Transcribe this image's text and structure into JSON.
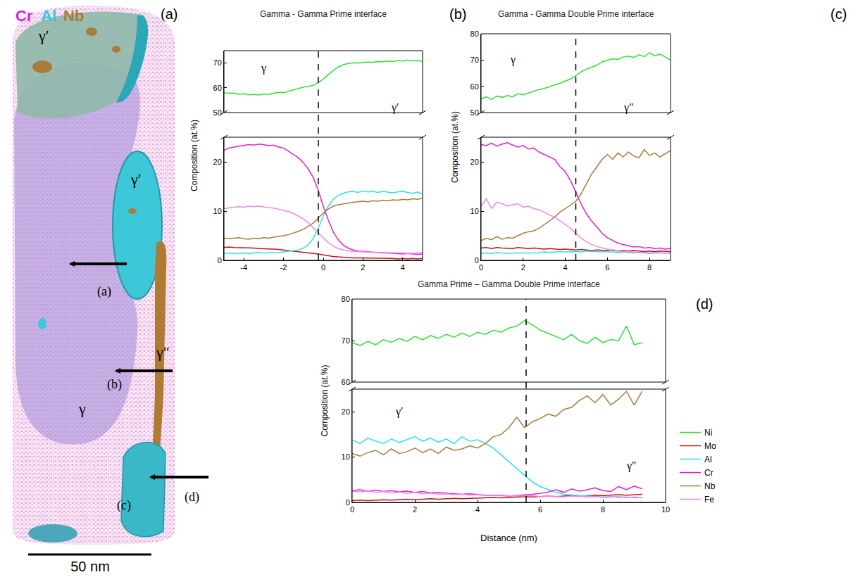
{
  "reconstruction": {
    "element_labels": [
      {
        "text": "Cr",
        "color": "#e020d8"
      },
      {
        "text": "Al",
        "color": "#2ec8e0"
      },
      {
        "text": "Nb",
        "color": "#a87c3a"
      }
    ],
    "phase_labels": [
      "γ′",
      "γ′",
      "γ″",
      "γ"
    ],
    "region_labels": [
      "(a)",
      "(b)",
      "(c)",
      "(d)"
    ],
    "scale_bar": "50 nm"
  },
  "panel_letters": [
    "(a)",
    "(b)",
    "(c)",
    "(d)"
  ],
  "chart_data": [
    {
      "type": "line",
      "title": "Gamma - Gamma Prime interface",
      "ylabel": "Composition (at.%)",
      "x": [
        -5,
        -4.75,
        -4.5,
        -4.25,
        -4,
        -3.75,
        -3.5,
        -3.25,
        -3,
        -2.75,
        -2.5,
        -2.25,
        -2,
        -1.75,
        -1.5,
        -1.25,
        -1,
        -0.75,
        -0.5,
        -0.25,
        0,
        0.25,
        0.5,
        0.75,
        1,
        1.25,
        1.5,
        1.75,
        2,
        2.25,
        2.5,
        2.75,
        3,
        3.25,
        3.5,
        3.75,
        4,
        4.25,
        4.5,
        4.75,
        5
      ],
      "xlim": [
        -5,
        5
      ],
      "xticks": [
        -4,
        -2,
        0,
        2,
        4
      ],
      "ylim": [
        0,
        25
      ],
      "yticks": [
        0,
        10,
        20
      ],
      "y2lim": [
        50,
        75
      ],
      "y2ticks": [
        50,
        60,
        70
      ],
      "interface": -0.25,
      "annotations": [
        {
          "text": "γ",
          "x": -3,
          "y": 68,
          "axis": "y2"
        },
        {
          "text": "γ′",
          "x": 3.6,
          "y": 52,
          "axis": "y2"
        }
      ],
      "series": [
        {
          "name": "Ni",
          "color": "#32e032",
          "axis": "y2",
          "values": [
            58.0,
            57.8,
            57.9,
            57.4,
            57.6,
            57.2,
            57.4,
            57.1,
            57.5,
            57.3,
            57.8,
            58.2,
            58.0,
            58.6,
            59.3,
            59.8,
            60.3,
            60.6,
            61.0,
            62.2,
            63.5,
            65.3,
            67.0,
            68.4,
            69.3,
            69.8,
            70.1,
            70.0,
            70.2,
            70.4,
            70.3,
            70.6,
            70.5,
            70.8,
            70.6,
            71.0,
            70.8,
            71.2,
            70.9,
            71.1,
            70.7
          ]
        },
        {
          "name": "Mo",
          "color": "#c0141e",
          "values": [
            2.6,
            2.7,
            2.6,
            2.6,
            2.5,
            2.6,
            2.5,
            2.4,
            2.4,
            2.3,
            2.3,
            2.2,
            2.1,
            2.0,
            1.9,
            1.8,
            1.7,
            1.6,
            1.5,
            1.3,
            1.1,
            0.9,
            0.8,
            0.7,
            0.6,
            0.6,
            0.5,
            0.5,
            0.5,
            0.4,
            0.4,
            0.4,
            0.4,
            0.4,
            0.4,
            0.3,
            0.4,
            0.3,
            0.4,
            0.3,
            0.4
          ]
        },
        {
          "name": "Al",
          "color": "#2ee0e8",
          "values": [
            1.4,
            1.5,
            1.4,
            1.5,
            1.5,
            1.4,
            1.5,
            1.6,
            1.5,
            1.5,
            1.6,
            1.6,
            1.7,
            1.8,
            1.9,
            2.1,
            2.5,
            3.2,
            4.5,
            6.5,
            9.0,
            11.0,
            12.4,
            13.2,
            13.6,
            13.9,
            14.0,
            13.8,
            14.1,
            13.9,
            14.0,
            13.8,
            14.0,
            13.9,
            13.7,
            13.9,
            14.0,
            13.8,
            13.6,
            13.9,
            13.5
          ]
        },
        {
          "name": "Cr",
          "color": "#e020d8",
          "values": [
            22.3,
            22.8,
            23.0,
            23.2,
            23.3,
            23.5,
            23.4,
            23.6,
            23.5,
            23.3,
            23.4,
            23.0,
            22.8,
            22.2,
            21.5,
            20.8,
            19.8,
            18.5,
            16.8,
            14.2,
            11.0,
            8.2,
            5.8,
            4.2,
            3.1,
            2.5,
            2.1,
            1.9,
            1.8,
            1.7,
            1.6,
            1.6,
            1.5,
            1.5,
            1.4,
            1.4,
            1.3,
            1.4,
            1.3,
            1.2,
            1.3
          ]
        },
        {
          "name": "Nb",
          "color": "#a87c3a",
          "values": [
            4.5,
            4.4,
            4.5,
            4.6,
            4.4,
            4.3,
            4.5,
            4.4,
            4.6,
            4.5,
            4.7,
            4.8,
            5.0,
            5.2,
            5.5,
            5.9,
            6.3,
            6.9,
            7.6,
            8.6,
            9.6,
            10.4,
            11.0,
            11.3,
            11.5,
            11.6,
            11.8,
            11.9,
            12.0,
            11.9,
            12.1,
            12.0,
            12.2,
            12.1,
            12.3,
            12.2,
            12.4,
            12.3,
            12.5,
            12.4,
            12.6
          ]
        },
        {
          "name": "Fe",
          "color": "#f08ae0",
          "values": [
            10.5,
            10.7,
            10.8,
            10.9,
            10.8,
            11.0,
            10.9,
            11.0,
            10.8,
            10.7,
            10.6,
            10.4,
            10.2,
            9.9,
            9.5,
            9.0,
            8.4,
            7.6,
            6.6,
            5.5,
            4.5,
            3.6,
            2.9,
            2.4,
            2.1,
            1.9,
            1.8,
            1.8,
            1.7,
            1.7,
            1.6,
            1.6,
            1.6,
            1.5,
            1.5,
            1.5,
            1.5,
            1.4,
            1.5,
            1.5,
            1.5
          ]
        }
      ]
    },
    {
      "type": "line",
      "title": "Gamma - Gamma Double Prime interface",
      "ylabel": "Composition (at.%)",
      "x": [
        0,
        0.25,
        0.5,
        0.75,
        1,
        1.25,
        1.5,
        1.75,
        2,
        2.25,
        2.5,
        2.75,
        3,
        3.25,
        3.5,
        3.75,
        4,
        4.25,
        4.5,
        4.75,
        5,
        5.25,
        5.5,
        5.75,
        6,
        6.25,
        6.5,
        6.75,
        7,
        7.25,
        7.5,
        7.75,
        8,
        8.25,
        8.5,
        8.75,
        9
      ],
      "xlim": [
        0,
        9
      ],
      "xticks": [
        0,
        2,
        4,
        6,
        8
      ],
      "ylim": [
        0,
        25
      ],
      "yticks": [
        0,
        10,
        20
      ],
      "y2lim": [
        50,
        80
      ],
      "y2ticks": [
        50,
        60,
        70,
        80
      ],
      "interface": 4.5,
      "annotations": [
        {
          "text": "γ",
          "x": 1.5,
          "y": 70,
          "axis": "y2"
        },
        {
          "text": "γ″",
          "x": 7,
          "y": 52,
          "axis": "y2"
        }
      ],
      "series": [
        {
          "name": "Ni",
          "color": "#32e032",
          "axis": "y2",
          "values": [
            55.2,
            56.0,
            55.0,
            56.3,
            55.8,
            56.5,
            56.0,
            57.2,
            56.8,
            57.5,
            58.0,
            58.8,
            59.2,
            60.0,
            60.6,
            61.2,
            62.0,
            62.8,
            64.0,
            65.5,
            66.5,
            67.2,
            68.0,
            69.3,
            69.8,
            70.5,
            70.2,
            71.2,
            71.5,
            71.0,
            72.0,
            71.3,
            72.8,
            71.6,
            72.3,
            71.2,
            70.0
          ]
        },
        {
          "name": "Mo",
          "color": "#c0141e",
          "values": [
            2.5,
            2.6,
            2.4,
            2.6,
            2.5,
            2.5,
            2.4,
            2.6,
            2.5,
            2.4,
            2.5,
            2.4,
            2.3,
            2.4,
            2.3,
            2.2,
            2.3,
            2.2,
            2.1,
            2.2,
            2.1,
            2.0,
            2.1,
            2.0,
            2.0,
            2.1,
            1.9,
            2.0,
            1.9,
            2.0,
            1.9,
            1.8,
            1.9,
            1.8,
            1.9,
            1.8,
            1.8
          ]
        },
        {
          "name": "Al",
          "color": "#2ee0e8",
          "values": [
            1.4,
            1.5,
            1.4,
            1.6,
            1.5,
            1.4,
            1.5,
            1.5,
            1.6,
            1.5,
            1.6,
            1.5,
            1.7,
            1.6,
            1.7,
            1.8,
            1.7,
            1.8,
            1.8,
            1.7,
            1.9,
            1.8,
            1.8,
            1.7,
            1.8,
            1.7,
            1.6,
            1.7,
            1.6,
            1.5,
            1.6,
            1.5,
            1.4,
            1.5,
            1.5,
            1.4,
            1.5
          ]
        },
        {
          "name": "Cr",
          "color": "#e020d8",
          "values": [
            23.5,
            23.3,
            23.8,
            23.2,
            23.6,
            23.9,
            23.4,
            23.0,
            23.3,
            22.6,
            22.8,
            22.0,
            21.5,
            21.0,
            20.5,
            19.0,
            18.0,
            16.2,
            13.8,
            11.5,
            9.5,
            8.0,
            6.8,
            5.5,
            4.6,
            4.0,
            3.5,
            3.2,
            3.0,
            2.7,
            2.8,
            2.5,
            2.6,
            2.4,
            2.5,
            2.3,
            2.4
          ]
        },
        {
          "name": "Nb",
          "color": "#a87c3a",
          "values": [
            4.0,
            4.5,
            4.2,
            4.8,
            4.3,
            4.6,
            4.5,
            5.0,
            5.5,
            5.8,
            6.0,
            6.5,
            7.2,
            8.0,
            8.8,
            9.8,
            10.5,
            11.2,
            12.0,
            13.5,
            15.5,
            17.5,
            19.0,
            20.5,
            21.5,
            20.5,
            21.8,
            21.0,
            22.0,
            21.2,
            20.8,
            22.5,
            21.3,
            21.8,
            21.0,
            21.6,
            22.3
          ]
        },
        {
          "name": "Fe",
          "color": "#f08ae0",
          "values": [
            11.0,
            12.5,
            10.5,
            11.8,
            11.5,
            11.0,
            11.3,
            11.5,
            10.8,
            11.0,
            10.5,
            10.3,
            9.8,
            9.2,
            8.8,
            8.0,
            7.2,
            6.5,
            5.5,
            4.5,
            3.8,
            3.2,
            2.8,
            2.5,
            2.2,
            2.0,
            1.9,
            1.8,
            1.8,
            1.7,
            1.6,
            1.6,
            1.5,
            1.6,
            1.5,
            1.5,
            1.4
          ]
        }
      ]
    },
    {
      "type": "line",
      "title": "Gamma Prime – Gamma Double Prime interface",
      "ylabel": "Composition (at.%)",
      "xlabel": "Distance (nm)",
      "x": [
        0,
        0.25,
        0.5,
        0.75,
        1,
        1.25,
        1.5,
        1.75,
        2,
        2.25,
        2.5,
        2.75,
        3,
        3.25,
        3.5,
        3.75,
        4,
        4.25,
        4.5,
        4.75,
        5,
        5.25,
        5.5,
        5.75,
        6,
        6.25,
        6.5,
        6.75,
        7,
        7.25,
        7.5,
        7.75,
        8,
        8.25,
        8.5,
        8.75,
        9,
        9.25
      ],
      "xlim": [
        0,
        10
      ],
      "xticks": [
        0,
        2,
        4,
        6,
        8,
        10
      ],
      "ylim": [
        0,
        25
      ],
      "yticks": [
        0,
        10,
        20
      ],
      "y2lim": [
        60,
        80
      ],
      "y2ticks": [
        60,
        70,
        80
      ],
      "interface": 5.55,
      "legend": "right",
      "annotations": [
        {
          "text": "γ′",
          "x": 1.5,
          "y": 20,
          "axis": "y"
        },
        {
          "text": "γ″",
          "x": 8.9,
          "y": 8,
          "axis": "y"
        }
      ],
      "series": [
        {
          "name": "Ni",
          "color": "#32e032",
          "axis": "y2",
          "values": [
            69.5,
            68.8,
            69.8,
            69.0,
            70.2,
            69.6,
            70.5,
            69.8,
            71.0,
            70.2,
            71.2,
            70.5,
            71.5,
            70.8,
            71.8,
            71.0,
            72.0,
            71.5,
            72.5,
            72.0,
            73.0,
            73.5,
            74.8,
            73.8,
            72.5,
            71.8,
            71.0,
            70.2,
            71.5,
            70.0,
            69.3,
            70.8,
            69.5,
            70.2,
            70.0,
            73.5,
            69.0,
            69.5
          ]
        },
        {
          "name": "Mo",
          "color": "#c0141e",
          "values": [
            0.4,
            0.5,
            0.4,
            0.5,
            0.6,
            0.5,
            0.6,
            0.7,
            0.6,
            0.7,
            0.8,
            0.7,
            0.8,
            0.9,
            0.8,
            0.9,
            1.0,
            1.0,
            1.1,
            1.0,
            1.1,
            1.2,
            1.3,
            1.2,
            1.3,
            1.4,
            1.3,
            1.4,
            1.5,
            1.4,
            1.5,
            1.6,
            1.5,
            1.6,
            1.7,
            1.6,
            1.7,
            1.8
          ]
        },
        {
          "name": "Al",
          "color": "#2ee0e8",
          "values": [
            13.8,
            13.0,
            14.2,
            13.5,
            13.0,
            14.0,
            13.2,
            13.8,
            14.5,
            13.5,
            14.2,
            13.3,
            14.0,
            13.0,
            14.5,
            13.5,
            13.8,
            13.0,
            12.0,
            10.5,
            9.0,
            7.5,
            6.0,
            4.5,
            3.5,
            2.8,
            2.2,
            1.8,
            1.6,
            1.5,
            1.4,
            1.3,
            1.2,
            1.3,
            1.1,
            1.2,
            1.0,
            1.1
          ]
        },
        {
          "name": "Cr",
          "color": "#e020d8",
          "values": [
            2.6,
            2.8,
            2.5,
            2.7,
            2.4,
            2.6,
            2.3,
            2.5,
            2.2,
            2.4,
            2.1,
            2.2,
            2.0,
            1.9,
            1.8,
            1.9,
            1.7,
            1.6,
            1.5,
            1.6,
            1.4,
            1.5,
            1.6,
            1.8,
            2.0,
            2.3,
            2.8,
            2.2,
            3.0,
            2.5,
            2.8,
            3.2,
            2.6,
            2.4,
            3.5,
            2.8,
            3.6,
            3.0
          ]
        },
        {
          "name": "Nb",
          "color": "#a87c3a",
          "values": [
            10.8,
            10.2,
            11.0,
            11.5,
            10.5,
            11.8,
            10.8,
            11.2,
            12.0,
            11.0,
            11.8,
            10.8,
            12.2,
            11.5,
            11.8,
            12.5,
            12.0,
            13.0,
            14.5,
            15.0,
            16.5,
            18.8,
            16.5,
            17.8,
            18.5,
            19.5,
            19.0,
            20.5,
            21.0,
            22.5,
            23.5,
            22.0,
            23.8,
            21.5,
            22.8,
            24.5,
            21.5,
            24.5
          ]
        },
        {
          "name": "Fe",
          "color": "#f08ae0",
          "values": [
            2.5,
            2.3,
            2.6,
            2.2,
            2.4,
            2.1,
            2.3,
            2.0,
            2.2,
            1.9,
            2.0,
            1.8,
            1.9,
            1.7,
            1.8,
            1.6,
            1.7,
            1.5,
            1.6,
            1.5,
            1.4,
            1.5,
            1.4,
            1.5,
            1.3,
            1.4,
            1.3,
            1.2,
            1.4,
            1.3,
            1.2,
            1.3,
            1.1,
            1.2,
            1.3,
            1.1,
            1.2,
            1.1
          ]
        }
      ]
    }
  ]
}
